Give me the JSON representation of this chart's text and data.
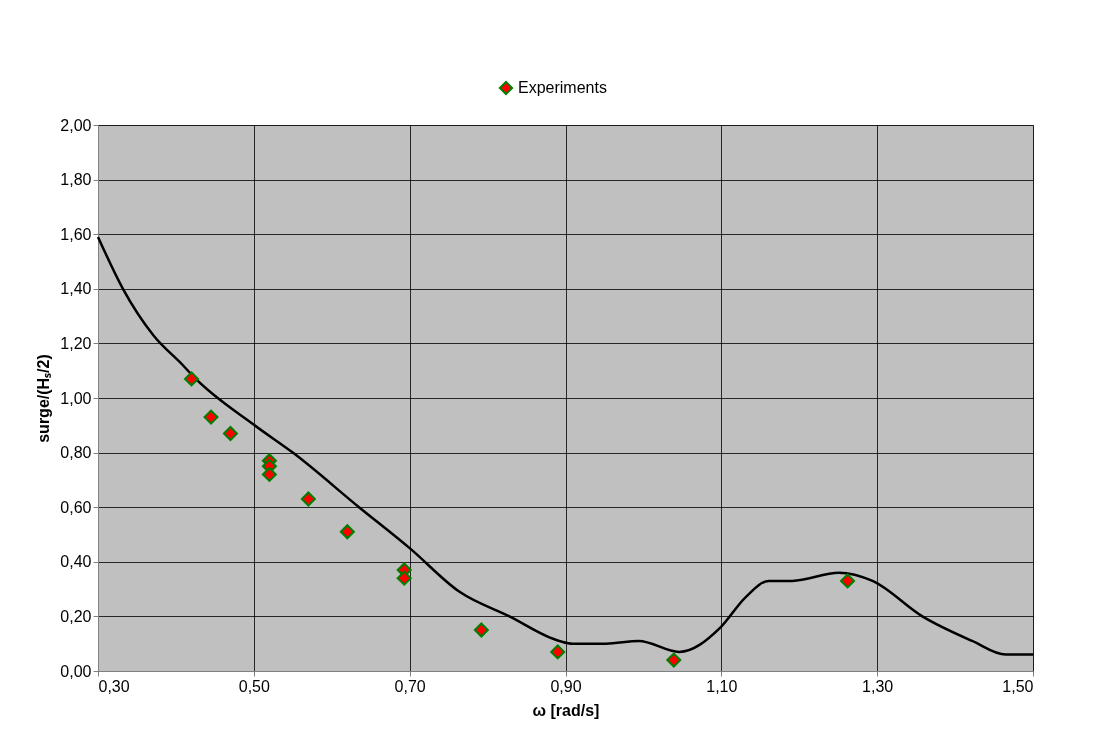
{
  "chart_data": {
    "type": "scatter",
    "xlabel": "ω [rad/s]",
    "ylabel": "surge/(Hₛ/2)",
    "xlim": [
      0.3,
      1.5
    ],
    "ylim": [
      0,
      2
    ],
    "xticks": [
      {
        "value": 0.3,
        "label": "0,30"
      },
      {
        "value": 0.5,
        "label": "0,50"
      },
      {
        "value": 0.7,
        "label": "0,70"
      },
      {
        "value": 0.9,
        "label": "0,90"
      },
      {
        "value": 1.1,
        "label": "1,10"
      },
      {
        "value": 1.3,
        "label": "1,30"
      },
      {
        "value": 1.5,
        "label": "1,50"
      }
    ],
    "yticks": [
      {
        "value": 0,
        "label": "0,00"
      },
      {
        "value": 0.2,
        "label": "0,20"
      },
      {
        "value": 0.4,
        "label": "0,40"
      },
      {
        "value": 0.6,
        "label": "0,60"
      },
      {
        "value": 0.8,
        "label": "0,80"
      },
      {
        "value": 1.0,
        "label": "1,00"
      },
      {
        "value": 1.2,
        "label": "1,20"
      },
      {
        "value": 1.4,
        "label": "1,40"
      },
      {
        "value": 1.6,
        "label": "1,60"
      },
      {
        "value": 1.8,
        "label": "1,80"
      },
      {
        "value": 2.0,
        "label": "2,00"
      }
    ],
    "grid": true,
    "legend": "top",
    "series": [
      {
        "type": "line",
        "color": "#000000",
        "marker": "none",
        "line_style": "solid",
        "x": [
          0.3,
          0.332,
          0.371,
          0.409,
          0.422,
          0.501,
          0.55,
          0.635,
          0.7,
          0.764,
          0.828,
          0.892,
          0.909,
          0.952,
          0.994,
          1.046,
          1.099,
          1.131,
          1.161,
          1.191,
          1.251,
          1.294,
          1.358,
          1.422,
          1.465,
          1.5
        ],
        "values": [
          1.59,
          1.4,
          1.23,
          1.12,
          1.08,
          0.9,
          0.8,
          0.6,
          0.45,
          0.29,
          0.2,
          0.11,
          0.1,
          0.1,
          0.11,
          0.07,
          0.16,
          0.27,
          0.33,
          0.33,
          0.36,
          0.33,
          0.2,
          0.11,
          0.06,
          0.06
        ]
      },
      {
        "name": "Experiments",
        "color": "#ff0000",
        "marker": "diamond",
        "x": [
          0.42,
          0.445,
          0.47,
          0.52,
          0.52,
          0.52,
          0.57,
          0.62,
          0.693,
          0.693,
          0.792,
          0.89,
          1.039,
          1.262
        ],
        "values": [
          1.07,
          0.93,
          0.87,
          0.77,
          0.75,
          0.72,
          0.63,
          0.51,
          0.37,
          0.34,
          0.15,
          0.07,
          0.04,
          0.33
        ]
      }
    ]
  }
}
